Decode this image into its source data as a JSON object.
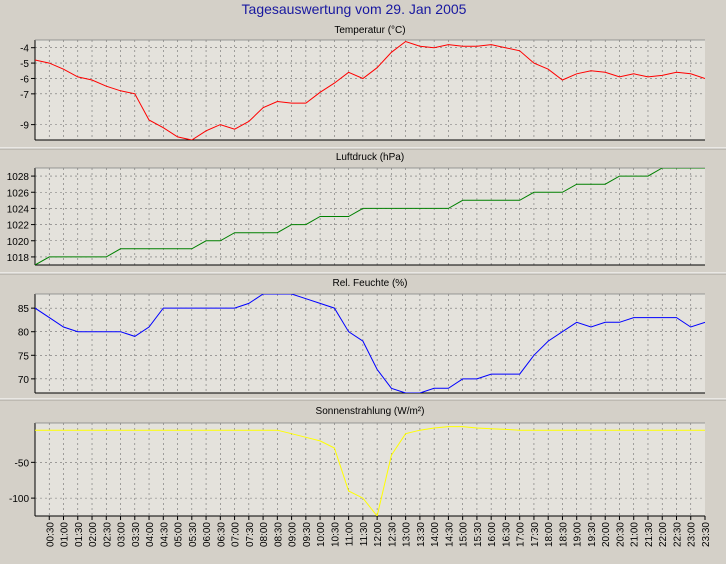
{
  "page": {
    "title": "Tagesauswertung vom 29. Jan 2005"
  },
  "colors": {
    "background": "#d4d0c8",
    "plot_background": "#e4e2dc",
    "title": "#1818a0",
    "grid": "#707070",
    "separator": "#ffffff"
  },
  "time_labels": [
    "00:30",
    "01:00",
    "01:30",
    "02:00",
    "02:30",
    "03:00",
    "03:30",
    "04:00",
    "04:30",
    "05:00",
    "05:30",
    "06:00",
    "06:30",
    "07:00",
    "07:30",
    "08:00",
    "08:30",
    "09:00",
    "09:30",
    "10:00",
    "10:30",
    "11:00",
    "11:30",
    "12:00",
    "12:30",
    "13:00",
    "13:30",
    "14:00",
    "14:30",
    "15:00",
    "15:30",
    "16:00",
    "16:30",
    "17:00",
    "17:30",
    "18:00",
    "18:30",
    "19:00",
    "19:30",
    "20:00",
    "20:30",
    "21:00",
    "21:30",
    "22:00",
    "22:30",
    "23:00",
    "23:30"
  ],
  "chart_data": [
    {
      "type": "line",
      "title": "Temperatur (°C)",
      "color": "#ff0000",
      "ylim": [
        -10,
        -3.5
      ],
      "yticks": [
        -4,
        -5,
        -6,
        -7,
        -9
      ],
      "grid": true,
      "x": [
        "00:00",
        "00:30",
        "01:00",
        "01:30",
        "02:00",
        "02:30",
        "03:00",
        "03:30",
        "04:00",
        "04:30",
        "05:00",
        "05:30",
        "06:00",
        "06:30",
        "07:00",
        "07:30",
        "08:00",
        "08:30",
        "09:00",
        "09:30",
        "10:00",
        "10:30",
        "11:00",
        "11:30",
        "12:00",
        "12:30",
        "13:00",
        "13:30",
        "14:00",
        "14:30",
        "15:00",
        "15:30",
        "16:00",
        "16:30",
        "17:00",
        "17:30",
        "18:00",
        "18:30",
        "19:00",
        "19:30",
        "20:00",
        "20:30",
        "21:00",
        "21:30",
        "22:00",
        "22:30",
        "23:00",
        "23:30"
      ],
      "values": [
        -4.8,
        -5.0,
        -5.4,
        -5.9,
        -6.1,
        -6.5,
        -6.8,
        -7.0,
        -8.7,
        -9.2,
        -9.8,
        -10.0,
        -9.4,
        -9.0,
        -9.3,
        -8.8,
        -7.9,
        -7.5,
        -7.6,
        -7.6,
        -6.9,
        -6.3,
        -5.6,
        -6.0,
        -5.3,
        -4.3,
        -3.6,
        -3.9,
        -4.0,
        -3.8,
        -3.9,
        -3.9,
        -3.8,
        -4.0,
        -4.2,
        -5.0,
        -5.4,
        -6.1,
        -5.7,
        -5.5,
        -5.6,
        -5.9,
        -5.7,
        -5.9,
        -5.8,
        -5.6,
        -5.7,
        -6.0
      ]
    },
    {
      "type": "line",
      "title": "Luftdruck (hPa)",
      "color": "#008000",
      "ylim": [
        1017,
        1029
      ],
      "yticks": [
        1028,
        1026,
        1024,
        1022,
        1020,
        1018
      ],
      "grid": true,
      "x": [
        "00:00",
        "00:30",
        "01:00",
        "01:30",
        "02:00",
        "02:30",
        "03:00",
        "03:30",
        "04:00",
        "04:30",
        "05:00",
        "05:30",
        "06:00",
        "06:30",
        "07:00",
        "07:30",
        "08:00",
        "08:30",
        "09:00",
        "09:30",
        "10:00",
        "10:30",
        "11:00",
        "11:30",
        "12:00",
        "12:30",
        "13:00",
        "13:30",
        "14:00",
        "14:30",
        "15:00",
        "15:30",
        "16:00",
        "16:30",
        "17:00",
        "17:30",
        "18:00",
        "18:30",
        "19:00",
        "19:30",
        "20:00",
        "20:30",
        "21:00",
        "21:30",
        "22:00",
        "22:30",
        "23:00",
        "23:30"
      ],
      "values": [
        1017,
        1018,
        1018,
        1018,
        1018,
        1018,
        1019,
        1019,
        1019,
        1019,
        1019,
        1019,
        1020,
        1020,
        1021,
        1021,
        1021,
        1021,
        1022,
        1022,
        1023,
        1023,
        1023,
        1024,
        1024,
        1024,
        1024,
        1024,
        1024,
        1024,
        1025,
        1025,
        1025,
        1025,
        1025,
        1026,
        1026,
        1026,
        1027,
        1027,
        1027,
        1028,
        1028,
        1028,
        1029,
        1029,
        1029,
        1029
      ]
    },
    {
      "type": "line",
      "title": "Rel. Feuchte (%)",
      "color": "#0000ff",
      "ylim": [
        67,
        88
      ],
      "yticks": [
        85,
        80,
        75,
        70
      ],
      "grid": true,
      "x": [
        "00:00",
        "00:30",
        "01:00",
        "01:30",
        "02:00",
        "02:30",
        "03:00",
        "03:30",
        "04:00",
        "04:30",
        "05:00",
        "05:30",
        "06:00",
        "06:30",
        "07:00",
        "07:30",
        "08:00",
        "08:30",
        "09:00",
        "09:30",
        "10:00",
        "10:30",
        "11:00",
        "11:30",
        "12:00",
        "12:30",
        "13:00",
        "13:30",
        "14:00",
        "14:30",
        "15:00",
        "15:30",
        "16:00",
        "16:30",
        "17:00",
        "17:30",
        "18:00",
        "18:30",
        "19:00",
        "19:30",
        "20:00",
        "20:30",
        "21:00",
        "21:30",
        "22:00",
        "22:30",
        "23:00",
        "23:30"
      ],
      "values": [
        85,
        83,
        81,
        80,
        80,
        80,
        80,
        79,
        81,
        85,
        85,
        85,
        85,
        85,
        85,
        86,
        88,
        88,
        88,
        87,
        86,
        85,
        80,
        78,
        72,
        68,
        67,
        67,
        68,
        68,
        70,
        70,
        71,
        71,
        71,
        75,
        78,
        80,
        82,
        81,
        82,
        82,
        83,
        83,
        83,
        83,
        81,
        82
      ]
    },
    {
      "type": "line",
      "title": "Sonnenstrahlung (W/m²)",
      "color": "#ffff00",
      "ylim": [
        -125,
        5
      ],
      "yticks": [
        -50,
        -100
      ],
      "grid": true,
      "x": [
        "00:00",
        "00:30",
        "01:00",
        "01:30",
        "02:00",
        "02:30",
        "03:00",
        "03:30",
        "04:00",
        "04:30",
        "05:00",
        "05:30",
        "06:00",
        "06:30",
        "07:00",
        "07:30",
        "08:00",
        "08:30",
        "09:00",
        "09:30",
        "10:00",
        "10:30",
        "11:00",
        "11:30",
        "12:00",
        "12:30",
        "13:00",
        "13:30",
        "14:00",
        "14:30",
        "15:00",
        "15:30",
        "16:00",
        "16:30",
        "17:00",
        "17:30",
        "18:00",
        "18:30",
        "19:00",
        "19:30",
        "20:00",
        "20:30",
        "21:00",
        "21:30",
        "22:00",
        "22:30",
        "23:00",
        "23:30"
      ],
      "values": [
        -5,
        -5,
        -5,
        -5,
        -5,
        -5,
        -5,
        -5,
        -5,
        -5,
        -5,
        -5,
        -5,
        -5,
        -5,
        -5,
        -5,
        -5,
        -10,
        -15,
        -20,
        -30,
        -90,
        -100,
        -125,
        -40,
        -10,
        -5,
        -2,
        0,
        0,
        -2,
        -3,
        -4,
        -5,
        -5,
        -5,
        -5,
        -5,
        -5,
        -5,
        -5,
        -5,
        -5,
        -5,
        -5,
        -5,
        -5
      ]
    }
  ]
}
